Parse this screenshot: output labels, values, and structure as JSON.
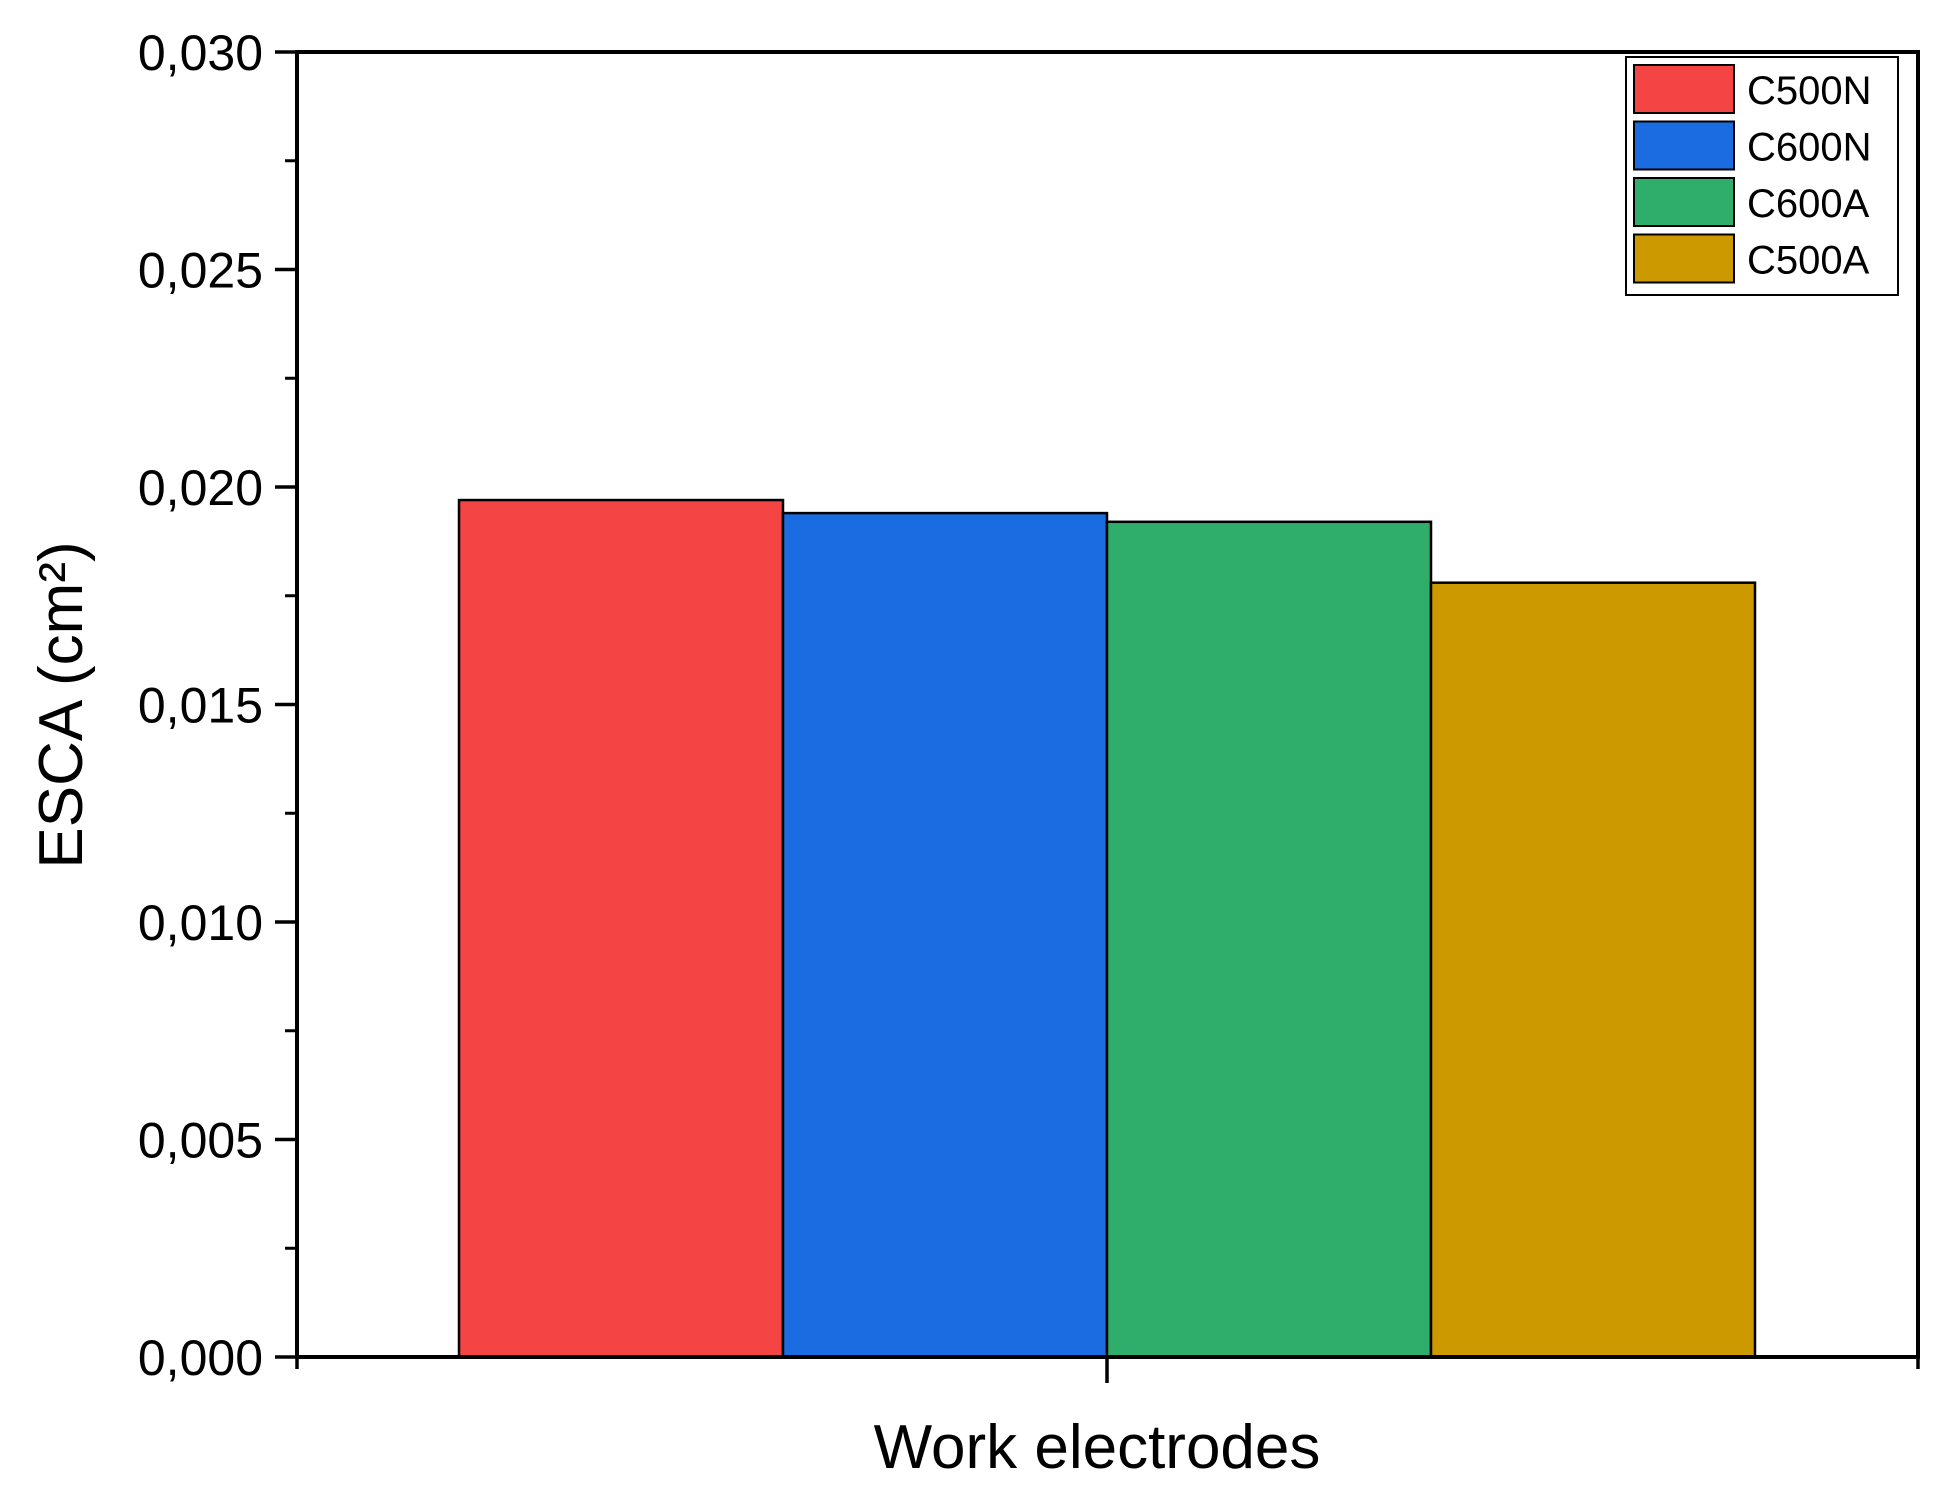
{
  "chart_data": {
    "type": "bar",
    "title": "",
    "xlabel": "Work electrodes",
    "ylabel": "ESCA (cm²)",
    "ylim": [
      0,
      0.03
    ],
    "yticks": [
      "0,000",
      "0,005",
      "0,010",
      "0,015",
      "0,020",
      "0,025",
      "0,030"
    ],
    "ytick_values": [
      0,
      0.005,
      0.01,
      0.015,
      0.02,
      0.025,
      0.03
    ],
    "grid": false,
    "legend_position": "top-right",
    "series": [
      {
        "name": "C500N",
        "value": 0.0197,
        "color": "#f44444"
      },
      {
        "name": "C600N",
        "value": 0.0194,
        "color": "#1a6ce0"
      },
      {
        "name": "C600A",
        "value": 0.0192,
        "color": "#2fad6b"
      },
      {
        "name": "C500A",
        "value": 0.0178,
        "color": "#cc9a00"
      }
    ]
  }
}
